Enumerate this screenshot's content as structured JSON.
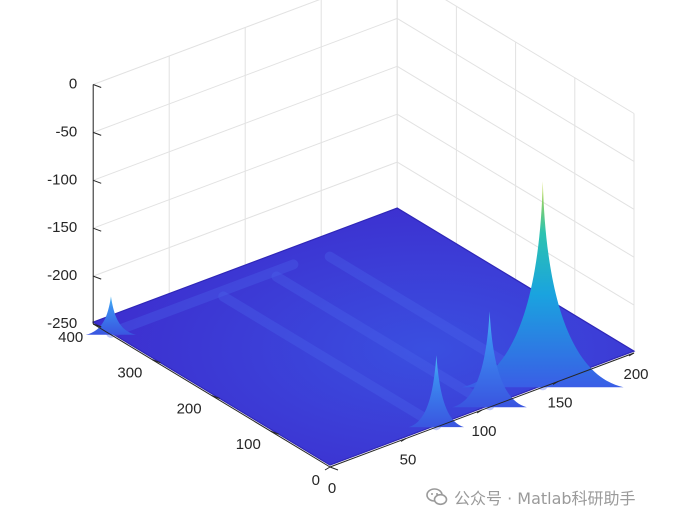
{
  "chart_data": {
    "type": "surface3d",
    "axes": {
      "x": {
        "range": [
          0,
          200
        ],
        "ticks": [
          0,
          50,
          100,
          150,
          200
        ]
      },
      "y": {
        "range": [
          0,
          400
        ],
        "ticks": [
          0,
          100,
          200,
          300,
          400
        ]
      },
      "z": {
        "range": [
          -250,
          0
        ],
        "ticks": [
          0,
          -50,
          -100,
          -150,
          -200,
          -250
        ]
      }
    },
    "grid": true,
    "colormap": "parula-like",
    "floor_level_z": -248,
    "peaks": [
      {
        "x": 140,
        "y": 0,
        "z": -35
      },
      {
        "x": 105,
        "y": 0,
        "z": -150
      },
      {
        "x": 70,
        "y": 0,
        "z": -175
      },
      {
        "x": 0,
        "y": 370,
        "z": -210
      }
    ]
  },
  "watermark": {
    "text": "公众号 · Matlab科研助手",
    "icon": "wechat-icon"
  }
}
